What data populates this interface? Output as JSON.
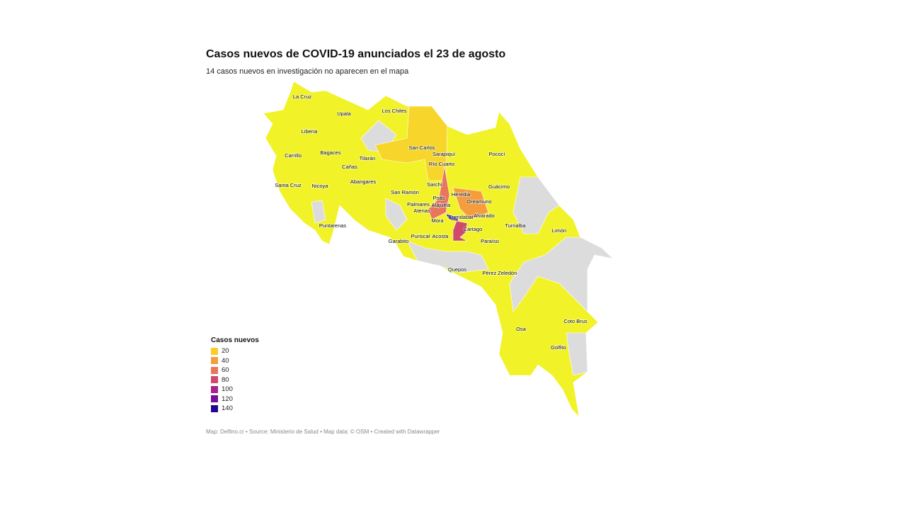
{
  "title": "Casos nuevos de COVID-19 anunciados el 23 de agosto",
  "subtitle": "14 casos nuevos en investigación no aparecen en el mapa",
  "legend": {
    "title": "Casos nuevos",
    "items": [
      {
        "label": "20",
        "color": "#f9cb2b"
      },
      {
        "label": "40",
        "color": "#f59d3d"
      },
      {
        "label": "60",
        "color": "#e8765a"
      },
      {
        "label": "80",
        "color": "#cf4a6c"
      },
      {
        "label": "100",
        "color": "#a8248a"
      },
      {
        "label": "120",
        "color": "#74109c"
      },
      {
        "label": "140",
        "color": "#25078e"
      }
    ]
  },
  "colors": {
    "low": "#f2f229",
    "no_data": "#dcdcdc"
  },
  "cantons": [
    "La Cruz",
    "Upala",
    "Los Chiles",
    "Liberia",
    "San Carlos",
    "Carrillo",
    "Bagaces",
    "Tilarán",
    "Sarapiquí",
    "Pococí",
    "Cañas",
    "Río Cuarto",
    "Abangares",
    "Santa Cruz",
    "Nicoya",
    "Guácimo",
    "Sarchí",
    "San Ramón",
    "Heredia",
    "Poás",
    "Oreamuno",
    "Palmares",
    "Alajuela",
    "Atenas",
    "Alvarado",
    "Mora",
    "Curridabat",
    "Turrialba",
    "Cartago",
    "Limón",
    "Puriscal",
    "Acosta",
    "Puntarenas",
    "Garabito",
    "Paraíso",
    "Quepos",
    "Pérez Zeledón",
    "Coto Brus",
    "Osa",
    "Golfito"
  ],
  "footer": "Map: Delfino.cr • Source: Ministerio de Salud • Map data: © OSM • Created with Datawrapper"
}
